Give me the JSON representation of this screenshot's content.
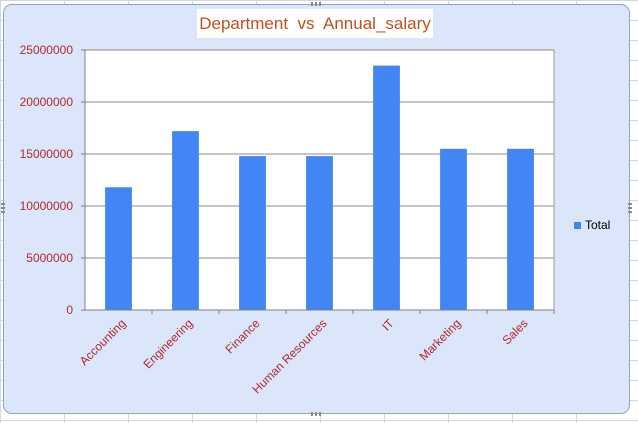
{
  "chart_data": {
    "type": "bar",
    "title": "Department  vs  Annual_salary",
    "xlabel": "",
    "ylabel": "",
    "categories": [
      "Accounting",
      "Engineering",
      "Finance",
      "Human Resources",
      "IT",
      "Marketing",
      "Sales"
    ],
    "series": [
      {
        "name": "Total",
        "values": [
          11800000,
          17200000,
          14800000,
          14800000,
          23500000,
          15500000,
          15500000
        ]
      }
    ],
    "ylim": [
      0,
      25000000
    ],
    "yticks": [
      "0",
      "5000000",
      "10000000",
      "15000000",
      "20000000",
      "25000000"
    ],
    "grid": true,
    "legend_position": "right"
  },
  "colors": {
    "bar": "#4285f4",
    "tick_text": "#b42828",
    "title_text": "#c0501e",
    "chart_background": "#dbe6fb",
    "plot_background": "#ffffff"
  }
}
